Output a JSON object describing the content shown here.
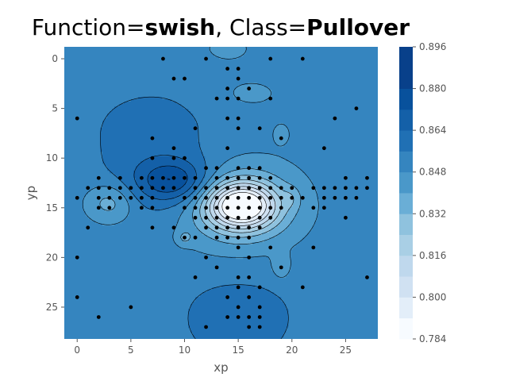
{
  "chart_data": {
    "type": "contourf",
    "title": {
      "function_label": "Function=",
      "function": "swish",
      "separator": ", ",
      "class_label": "Class=",
      "class": "Pullover"
    },
    "xlabel": "xp",
    "ylabel": "yp",
    "xlim": [
      -1.2,
      28.0
    ],
    "ylim": [
      28.2,
      -1.2
    ],
    "xticks": [
      0,
      5,
      10,
      15,
      20,
      25
    ],
    "yticks": [
      0,
      5,
      10,
      15,
      20,
      25
    ],
    "background_value": 0.852,
    "colorbar": {
      "min": 0.784,
      "max": 0.896,
      "ticks": [
        "0.784",
        "0.800",
        "0.816",
        "0.832",
        "0.848",
        "0.864",
        "0.880",
        "0.896"
      ],
      "levels": [
        0.784,
        0.792,
        0.8,
        0.808,
        0.816,
        0.824,
        0.832,
        0.84,
        0.848,
        0.856,
        0.864,
        0.872,
        0.88,
        0.888,
        0.896
      ],
      "colors": [
        "#f7fbff",
        "#e3eef9",
        "#d0e1f2",
        "#bfd8ed",
        "#a9cfe5",
        "#8fc2de",
        "#6aaed6",
        "#4a98c9",
        "#3585bf",
        "#2070b4",
        "#1460a8",
        "#08519c",
        "#08408a"
      ]
    },
    "blobs": [
      {
        "x": 15.3,
        "y": 14.8,
        "sx": 2.2,
        "sy": 1.6,
        "a": -0.065
      },
      {
        "x": 15.0,
        "y": 14.8,
        "sx": 4.2,
        "sy": 3.4,
        "a": -0.018
      },
      {
        "x": 3.0,
        "y": 14.5,
        "sx": 1.6,
        "sy": 1.4,
        "a": -0.016
      },
      {
        "x": 10.0,
        "y": 18.0,
        "sx": 0.5,
        "sy": 0.5,
        "a": -0.01
      },
      {
        "x": 19.0,
        "y": 21.0,
        "sx": 0.6,
        "sy": 0.9,
        "a": -0.01
      },
      {
        "x": 19.0,
        "y": 7.5,
        "sx": 0.6,
        "sy": 0.8,
        "a": -0.007
      },
      {
        "x": 16.0,
        "y": 3.5,
        "sx": 2.5,
        "sy": 1.3,
        "a": -0.006
      },
      {
        "x": 20.0,
        "y": 14.0,
        "sx": 0.6,
        "sy": 0.8,
        "a": -0.007
      },
      {
        "x": 9.0,
        "y": 12.3,
        "sx": 2.2,
        "sy": 1.4,
        "a": 0.02
      },
      {
        "x": 8.5,
        "y": 12.5,
        "sx": 3.5,
        "sy": 2.5,
        "a": 0.011
      },
      {
        "x": 7.0,
        "y": 7.0,
        "sx": 5.0,
        "sy": 3.5,
        "a": 0.006
      },
      {
        "x": 15.0,
        "y": 26.0,
        "sx": 4.0,
        "sy": 3.5,
        "a": 0.008
      },
      {
        "x": 14.0,
        "y": -1.0,
        "sx": 2.0,
        "sy": 1.2,
        "a": -0.006
      }
    ],
    "points": [
      [
        8,
        0
      ],
      [
        12,
        0
      ],
      [
        18,
        0
      ],
      [
        21,
        0
      ],
      [
        14,
        1
      ],
      [
        15,
        1
      ],
      [
        9,
        2
      ],
      [
        10,
        2
      ],
      [
        15,
        2
      ],
      [
        14,
        3
      ],
      [
        16,
        3
      ],
      [
        13,
        4
      ],
      [
        14,
        4
      ],
      [
        15,
        4
      ],
      [
        18,
        4
      ],
      [
        26,
        5
      ],
      [
        0,
        6
      ],
      [
        14,
        6
      ],
      [
        15,
        6
      ],
      [
        24,
        6
      ],
      [
        11,
        7
      ],
      [
        15,
        7
      ],
      [
        17,
        7
      ],
      [
        7,
        8
      ],
      [
        19,
        8
      ],
      [
        9,
        9
      ],
      [
        14,
        9
      ],
      [
        23,
        9
      ],
      [
        7,
        10
      ],
      [
        9,
        10
      ],
      [
        10,
        10
      ],
      [
        12,
        11
      ],
      [
        13,
        11
      ],
      [
        15,
        11
      ],
      [
        16,
        11
      ],
      [
        17,
        11
      ],
      [
        8,
        12
      ],
      [
        9,
        12
      ],
      [
        10,
        12
      ],
      [
        11,
        12
      ],
      [
        13,
        12
      ],
      [
        14,
        12
      ],
      [
        15,
        12
      ],
      [
        16,
        12
      ],
      [
        17,
        12
      ],
      [
        18,
        12
      ],
      [
        2,
        12
      ],
      [
        4,
        12
      ],
      [
        6,
        12
      ],
      [
        7,
        12
      ],
      [
        25,
        12
      ],
      [
        27,
        12
      ],
      [
        1,
        13
      ],
      [
        2,
        13
      ],
      [
        3,
        13
      ],
      [
        4,
        13
      ],
      [
        5,
        13
      ],
      [
        6,
        13
      ],
      [
        7,
        13
      ],
      [
        8,
        13
      ],
      [
        9,
        13
      ],
      [
        11,
        13
      ],
      [
        12,
        13
      ],
      [
        13,
        13
      ],
      [
        14,
        13
      ],
      [
        15,
        13
      ],
      [
        16,
        13
      ],
      [
        17,
        13
      ],
      [
        18,
        13
      ],
      [
        19,
        13
      ],
      [
        20,
        13
      ],
      [
        22,
        13
      ],
      [
        23,
        13
      ],
      [
        24,
        13
      ],
      [
        25,
        13
      ],
      [
        26,
        13
      ],
      [
        27,
        13
      ],
      [
        0,
        14
      ],
      [
        2,
        14
      ],
      [
        3,
        14
      ],
      [
        4,
        14
      ],
      [
        5,
        14
      ],
      [
        6,
        14
      ],
      [
        7,
        14
      ],
      [
        10,
        14
      ],
      [
        11,
        14
      ],
      [
        12,
        14
      ],
      [
        13,
        14
      ],
      [
        14,
        14
      ],
      [
        15,
        14
      ],
      [
        16,
        14
      ],
      [
        17,
        14
      ],
      [
        18,
        14
      ],
      [
        19,
        14
      ],
      [
        20,
        14
      ],
      [
        21,
        14
      ],
      [
        23,
        14
      ],
      [
        24,
        14
      ],
      [
        25,
        14
      ],
      [
        26,
        14
      ],
      [
        2,
        15
      ],
      [
        3,
        15
      ],
      [
        6,
        15
      ],
      [
        7,
        15
      ],
      [
        10,
        15
      ],
      [
        11,
        15
      ],
      [
        12,
        15
      ],
      [
        13,
        15
      ],
      [
        14,
        15
      ],
      [
        15,
        15
      ],
      [
        16,
        15
      ],
      [
        17,
        15
      ],
      [
        18,
        15
      ],
      [
        19,
        15
      ],
      [
        22,
        15
      ],
      [
        23,
        15
      ],
      [
        11,
        16
      ],
      [
        12,
        16
      ],
      [
        13,
        16
      ],
      [
        14,
        16
      ],
      [
        15,
        16
      ],
      [
        16,
        16
      ],
      [
        17,
        16
      ],
      [
        18,
        16
      ],
      [
        25,
        16
      ],
      [
        1,
        17
      ],
      [
        7,
        17
      ],
      [
        9,
        17
      ],
      [
        12,
        17
      ],
      [
        13,
        17
      ],
      [
        14,
        17
      ],
      [
        15,
        17
      ],
      [
        16,
        17
      ],
      [
        17,
        17
      ],
      [
        10,
        18
      ],
      [
        11,
        18
      ],
      [
        13,
        18
      ],
      [
        14,
        18
      ],
      [
        15,
        18
      ],
      [
        16,
        18
      ],
      [
        15,
        19
      ],
      [
        18,
        19
      ],
      [
        22,
        19
      ],
      [
        0,
        20
      ],
      [
        12,
        20
      ],
      [
        16,
        20
      ],
      [
        13,
        21
      ],
      [
        19,
        21
      ],
      [
        15,
        22
      ],
      [
        16,
        22
      ],
      [
        11,
        22
      ],
      [
        27,
        22
      ],
      [
        15,
        23
      ],
      [
        17,
        23
      ],
      [
        21,
        23
      ],
      [
        14,
        24
      ],
      [
        16,
        24
      ],
      [
        0,
        24
      ],
      [
        5,
        25
      ],
      [
        15,
        25
      ],
      [
        17,
        25
      ],
      [
        2,
        26
      ],
      [
        14,
        26
      ],
      [
        15,
        26
      ],
      [
        16,
        26
      ],
      [
        17,
        26
      ],
      [
        12,
        27
      ],
      [
        16,
        27
      ],
      [
        17,
        27
      ]
    ]
  }
}
